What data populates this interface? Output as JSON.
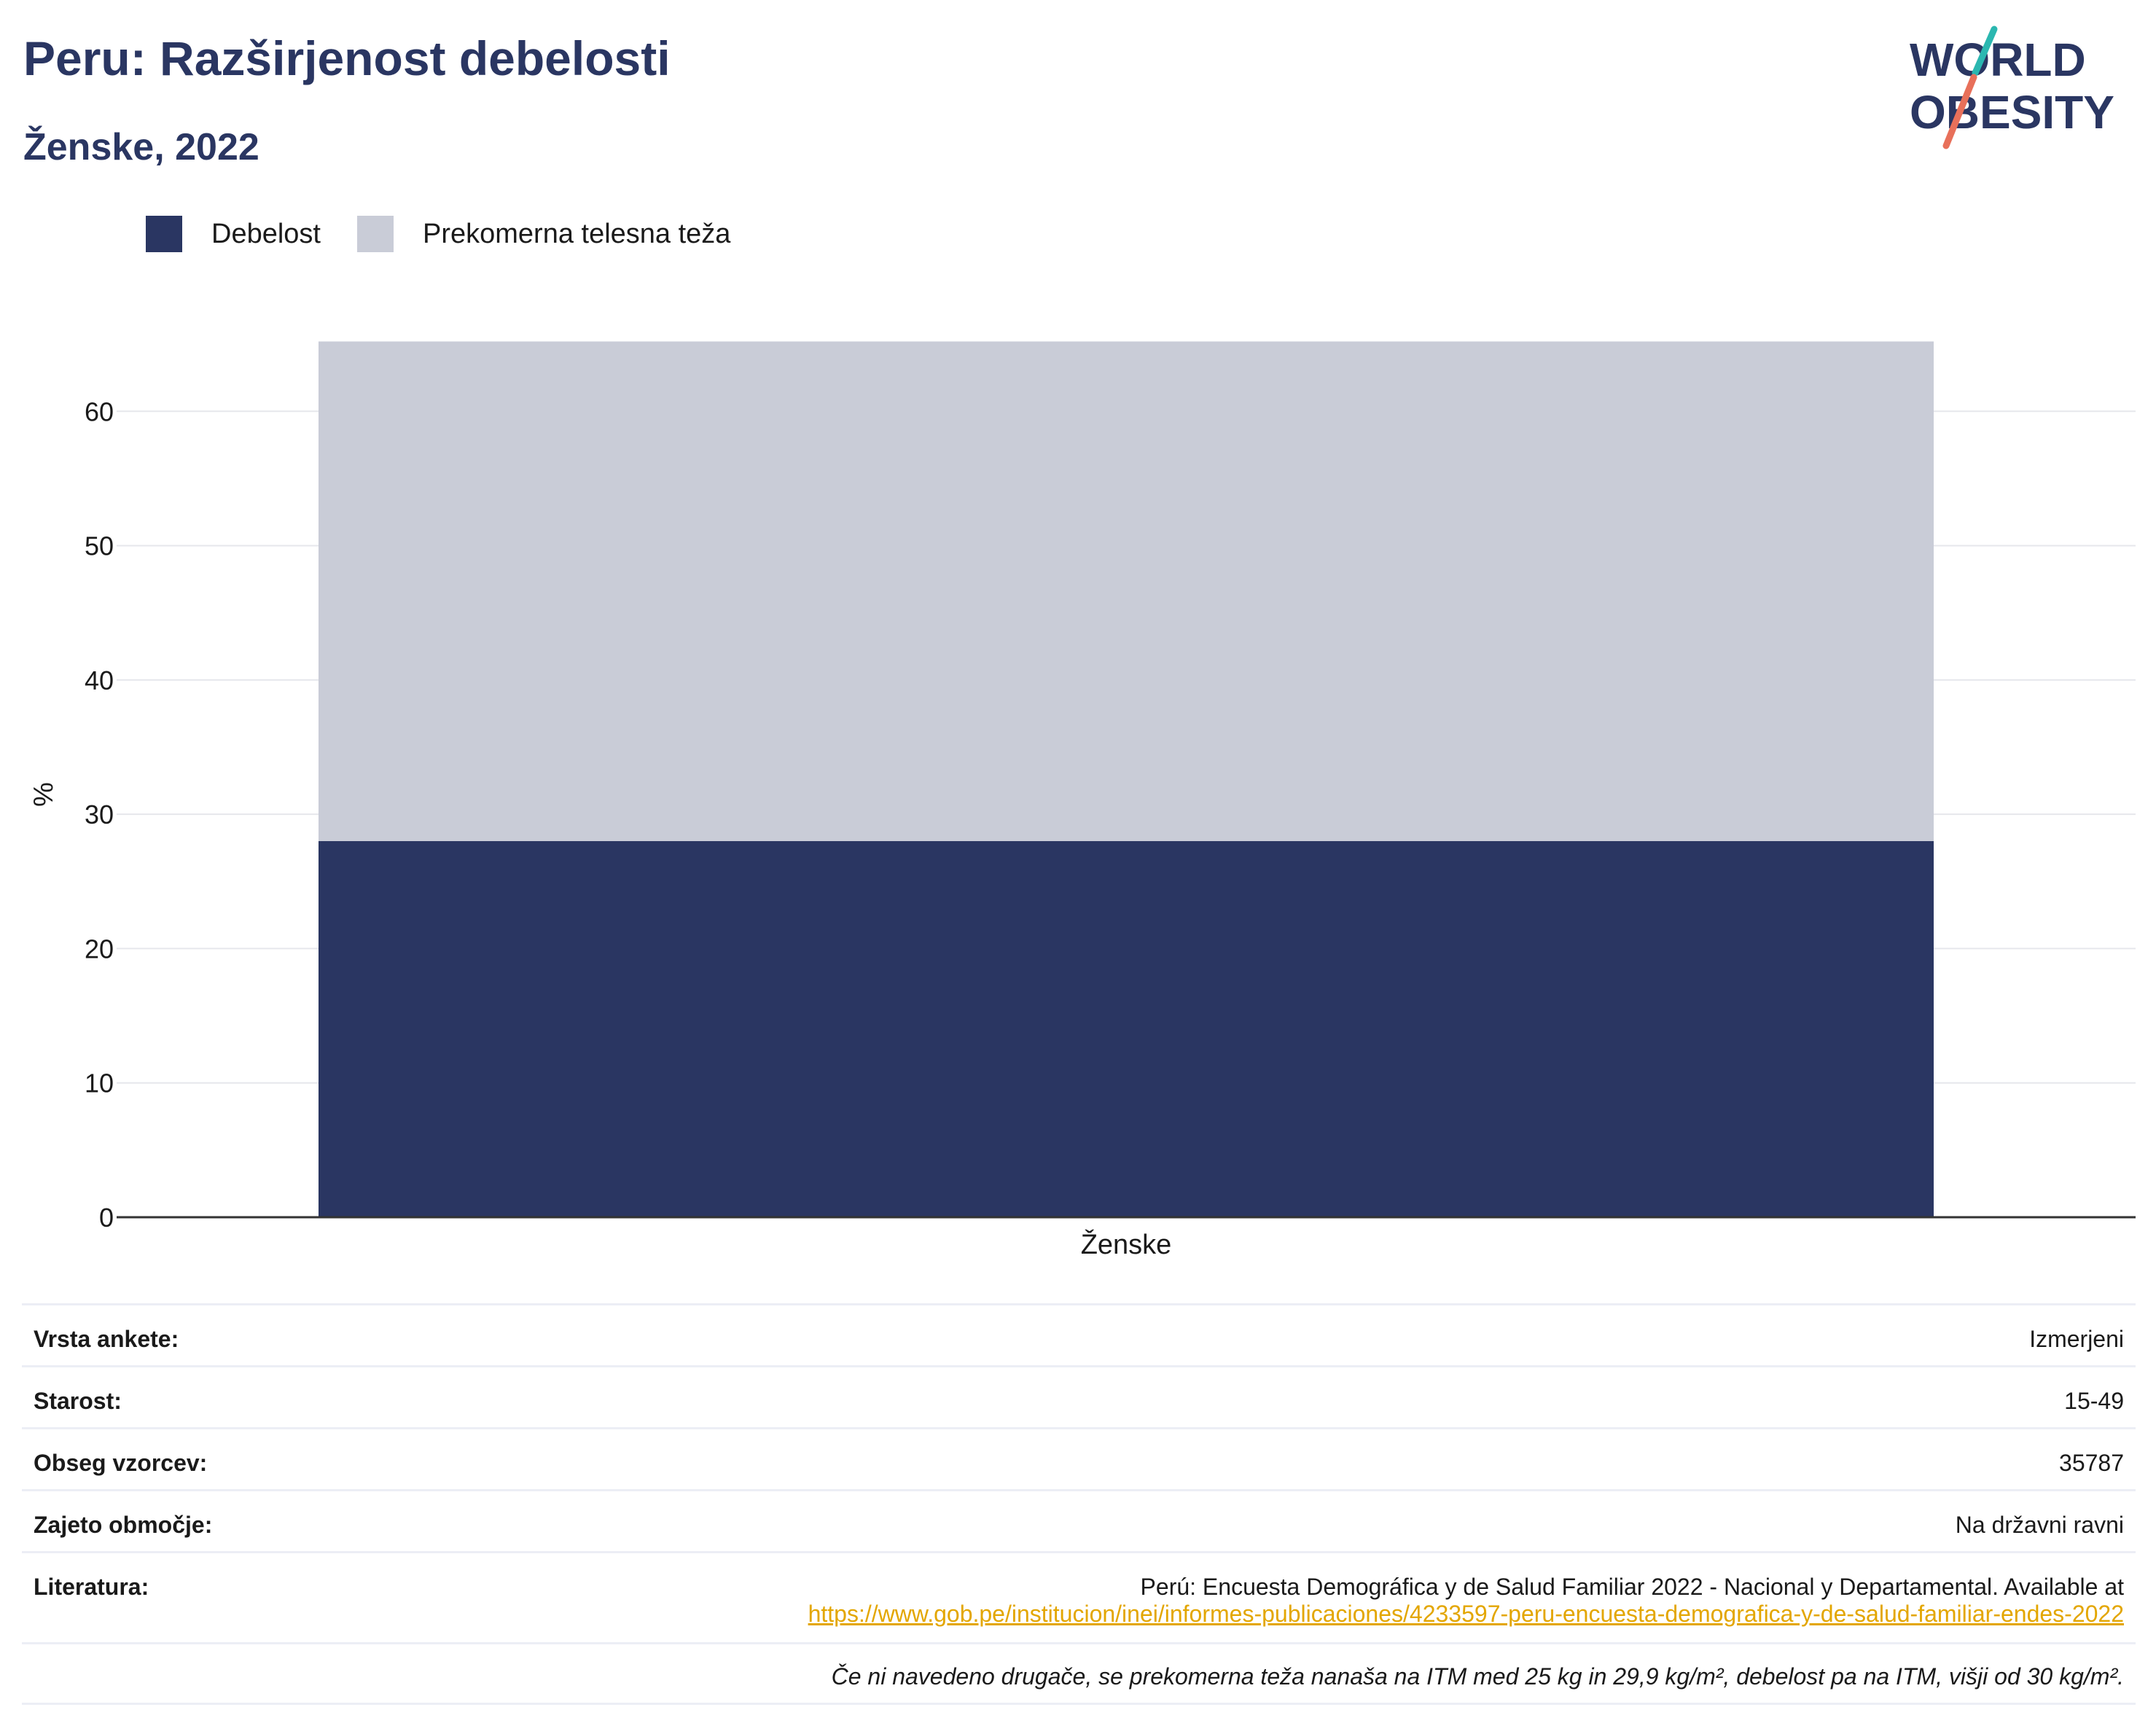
{
  "header": {
    "title": "Peru: Razširjenost debelosti",
    "subtitle": "Ženske, 2022"
  },
  "logo": {
    "line1": "WORLD",
    "line2": "OBESITY",
    "colors": {
      "text": "#2a3662",
      "slash_top": "#2bb7b0",
      "slash_bottom": "#e8705a"
    }
  },
  "legend": {
    "items": [
      {
        "label": "Debelost",
        "color": "#2a3662"
      },
      {
        "label": "Prekomerna telesna teža",
        "color": "#c9ccd7"
      }
    ]
  },
  "chart_data": {
    "type": "bar",
    "stacked": true,
    "categories": [
      "Ženske"
    ],
    "series": [
      {
        "name": "Debelost",
        "values": [
          28
        ],
        "color": "#2a3662"
      },
      {
        "name": "Prekomerna telesna teža",
        "values": [
          37.2
        ],
        "color": "#c9ccd7"
      }
    ],
    "ylabel": "%",
    "ylim": [
      0,
      70
    ],
    "yticks": [
      0,
      10,
      20,
      30,
      40,
      50,
      60
    ],
    "grid": true
  },
  "info": {
    "rows": [
      {
        "label": "Vrsta ankete:",
        "value": "Izmerjeni"
      },
      {
        "label": "Starost:",
        "value": "15-49"
      },
      {
        "label": "Obseg vzorcev:",
        "value": "35787"
      },
      {
        "label": "Zajeto območje:",
        "value": "Na državni ravni"
      }
    ],
    "literature": {
      "label": "Literatura:",
      "text": "Perú: Encuesta Demográfica y de Salud Familiar 2022 - Nacional y Departamental. Available at",
      "link": "https://www.gob.pe/institucion/inei/informes-publicaciones/4233597-peru-encuesta-demografica-y-de-salud-familiar-endes-2022"
    },
    "note": "Če ni navedeno drugače, se prekomerna teža nanaša na ITM med 25 kg in 29,9 kg/m², debelost pa na ITM, višji od 30 kg/m²."
  }
}
